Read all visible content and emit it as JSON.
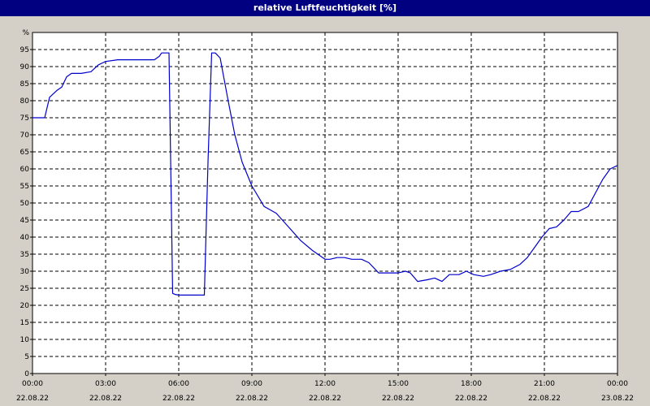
{
  "window": {
    "title": "relative Luftfeuchtigkeit [%]"
  },
  "chart_data": {
    "type": "line",
    "title": "relative Luftfeuchtigkeit [%]",
    "ylabel": "%",
    "ylim": [
      0,
      100
    ],
    "yticks": [
      0,
      5,
      10,
      15,
      20,
      25,
      30,
      35,
      40,
      45,
      50,
      55,
      60,
      65,
      70,
      75,
      80,
      85,
      90,
      95
    ],
    "xlim": [
      0,
      24
    ],
    "x_unit": "hours",
    "xticks": [
      {
        "x": 0,
        "time": "00:00",
        "date": "22.08.22"
      },
      {
        "x": 3,
        "time": "03:00",
        "date": "22.08.22"
      },
      {
        "x": 6,
        "time": "06:00",
        "date": "22.08.22"
      },
      {
        "x": 9,
        "time": "09:00",
        "date": "22.08.22"
      },
      {
        "x": 12,
        "time": "12:00",
        "date": "22.08.22"
      },
      {
        "x": 15,
        "time": "15:00",
        "date": "22.08.22"
      },
      {
        "x": 18,
        "time": "18:00",
        "date": "22.08.22"
      },
      {
        "x": 21,
        "time": "21:00",
        "date": "22.08.22"
      },
      {
        "x": 24,
        "time": "00:00",
        "date": "23.08.22"
      }
    ],
    "grid": true,
    "color": "#0000cc",
    "series": [
      {
        "x": [
          0,
          0.3,
          0.5,
          0.7,
          1.0,
          1.2,
          1.4,
          1.6,
          2.0,
          2.4,
          2.7,
          3.0,
          3.5,
          4.0,
          4.5,
          5.0,
          5.2,
          5.3,
          5.4,
          5.6,
          5.75,
          5.85,
          6.0,
          6.5,
          6.9,
          7.05,
          7.2,
          7.35,
          7.5,
          7.7,
          8.0,
          8.3,
          8.6,
          9.0,
          9.5,
          10.0,
          10.5,
          11.0,
          11.5,
          12.0,
          12.2,
          12.5,
          12.8,
          13.1,
          13.5,
          13.8,
          14.2,
          14.6,
          15.0,
          15.3,
          15.5,
          15.8,
          16.2,
          16.5,
          16.8,
          17.1,
          17.5,
          17.8,
          18.1,
          18.5,
          18.8,
          19.2,
          19.6,
          20.0,
          20.3,
          20.6,
          20.9,
          21.2,
          21.5,
          21.8,
          22.1,
          22.4,
          22.8,
          23.1,
          23.4,
          23.7,
          24.0
        ],
        "y": [
          75,
          75,
          75,
          81,
          83,
          84,
          87,
          88,
          88,
          88.5,
          90.5,
          91.5,
          92,
          92,
          92,
          92,
          93,
          94,
          94,
          94,
          23.5,
          23.2,
          23,
          23,
          23,
          23,
          62,
          94,
          94,
          92.5,
          81,
          70,
          62,
          55,
          49,
          47,
          43,
          39,
          36,
          33.5,
          33.5,
          34,
          34,
          33.5,
          33.5,
          32.5,
          29.5,
          29.5,
          29.5,
          30,
          29.5,
          27,
          27.5,
          28,
          27,
          29,
          29,
          30,
          29,
          28.5,
          29,
          30,
          30.5,
          32,
          34,
          37,
          40,
          42.5,
          43,
          45,
          47.5,
          47.5,
          49,
          53,
          57,
          60,
          61
        ]
      }
    ]
  }
}
